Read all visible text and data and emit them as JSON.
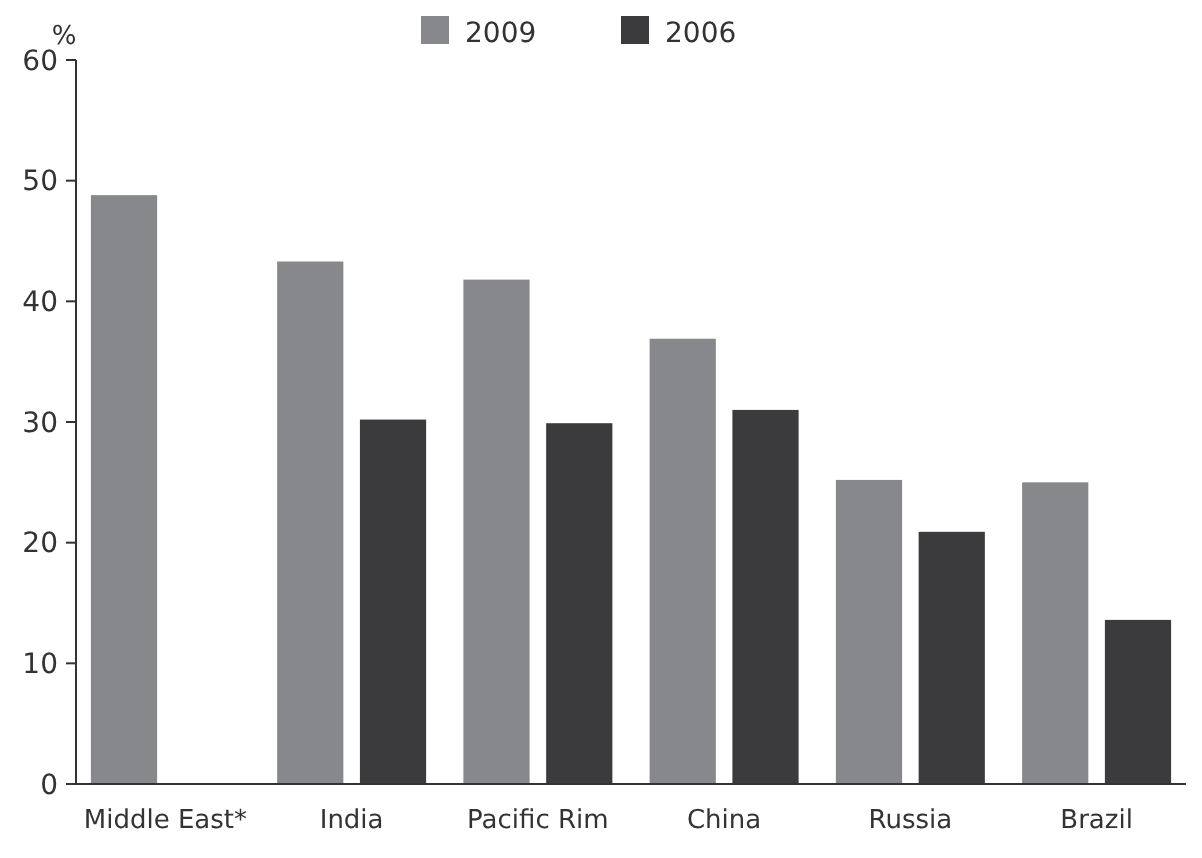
{
  "chart_data": {
    "type": "bar",
    "ylabel": "%",
    "categories": [
      "Middle East*",
      "India",
      "Pacific Rim",
      "China",
      "Russia",
      "Brazil"
    ],
    "series": [
      {
        "name": "2009",
        "color": "#87888b",
        "values": [
          48.8,
          43.3,
          41.8,
          36.9,
          25.2,
          25.0
        ]
      },
      {
        "name": "2006",
        "color": "#3b3b3d",
        "values": [
          null,
          30.2,
          29.9,
          31.0,
          20.9,
          13.6
        ]
      }
    ],
    "ylim": [
      0,
      60
    ],
    "yticks": [
      0,
      10,
      20,
      30,
      40,
      50,
      60
    ],
    "grid": false,
    "legend": "top"
  }
}
